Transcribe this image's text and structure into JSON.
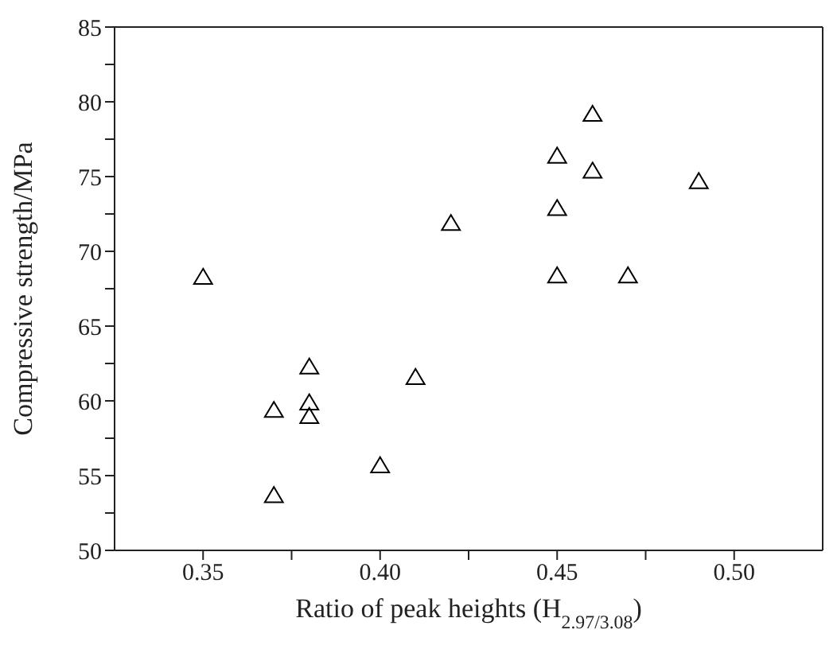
{
  "chart_data": {
    "type": "scatter",
    "xlabel": "Ratio of peak heights (H$_{2.97/3.08}$)",
    "ylabel": "Compressive strength/MPa",
    "x": [
      0.35,
      0.37,
      0.37,
      0.38,
      0.38,
      0.38,
      0.4,
      0.41,
      0.42,
      0.45,
      0.45,
      0.45,
      0.46,
      0.46,
      0.47,
      0.49
    ],
    "series": [
      {
        "color": "#000000",
        "values": [
          68.2,
          59.3,
          53.6,
          62.2,
          59.8,
          58.9,
          55.6,
          61.5,
          71.8,
          76.3,
          72.8,
          68.3,
          79.1,
          75.3,
          68.3,
          74.6
        ]
      }
    ],
    "marker": "triangle",
    "legend": false,
    "xlim": [
      0.325,
      0.525
    ],
    "xticks": [
      0.35,
      {
        "value": 0.375,
        "label": null
      },
      {
        "value": 0.4,
        "label": "0.40"
      },
      {
        "value": 0.425,
        "label": null
      },
      0.45,
      {
        "value": 0.475,
        "label": null
      },
      {
        "value": 0.5,
        "label": "0.50"
      }
    ],
    "ylim": [
      50,
      85
    ],
    "yticks": [
      50,
      {
        "value": 52.5,
        "label": null
      },
      55,
      {
        "value": 57.5,
        "label": null
      },
      60,
      {
        "value": 62.5,
        "label": null
      },
      65,
      {
        "value": 67.5,
        "label": null
      },
      70,
      {
        "value": 72.5,
        "label": null
      },
      75,
      {
        "value": 77.5,
        "label": null
      },
      80,
      {
        "value": 82.5,
        "label": null
      },
      85
    ]
  }
}
